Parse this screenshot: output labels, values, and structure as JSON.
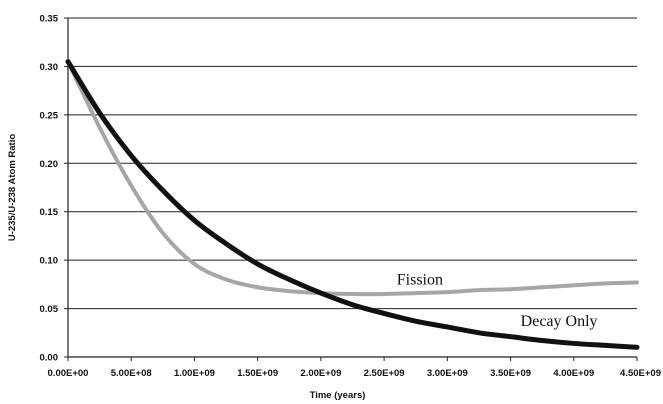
{
  "chart_data": {
    "type": "line",
    "xlabel": "Time (years)",
    "ylabel": "U-235/U-238 Atom Ratio",
    "xlim": [
      0,
      4500000000
    ],
    "ylim": [
      0,
      0.35
    ],
    "x_ticks": [
      "0.00E+00",
      "5.00E+08",
      "1.00E+09",
      "1.50E+09",
      "2.00E+09",
      "2.50E+09",
      "3.00E+09",
      "3.50E+09",
      "4.00E+09",
      "4.50E+09"
    ],
    "y_ticks": [
      "0.00",
      "0.05",
      "0.10",
      "0.15",
      "0.20",
      "0.25",
      "0.30",
      "0.35"
    ],
    "grid": "horizontal",
    "legend": "none",
    "series": [
      {
        "name": "Decay Only",
        "color": "#111111",
        "x": [
          0,
          250000000,
          500000000,
          750000000,
          1000000000,
          1250000000,
          1500000000,
          1750000000,
          2000000000,
          2250000000,
          2500000000,
          2750000000,
          3000000000,
          3250000000,
          3500000000,
          3750000000,
          4000000000,
          4250000000,
          4500000000
        ],
        "y": [
          0.305,
          0.252,
          0.208,
          0.172,
          0.141,
          0.117,
          0.096,
          0.08,
          0.066,
          0.054,
          0.045,
          0.037,
          0.031,
          0.025,
          0.021,
          0.017,
          0.014,
          0.012,
          0.01
        ]
      },
      {
        "name": "Fission",
        "color": "#a6a6a6",
        "x": [
          0,
          250000000,
          500000000,
          750000000,
          1000000000,
          1250000000,
          1500000000,
          1750000000,
          2000000000,
          2250000000,
          2500000000,
          2750000000,
          3000000000,
          3250000000,
          3500000000,
          3750000000,
          4000000000,
          4250000000,
          4500000000
        ],
        "y": [
          0.305,
          0.237,
          0.177,
          0.128,
          0.096,
          0.08,
          0.072,
          0.068,
          0.066,
          0.065,
          0.065,
          0.066,
          0.067,
          0.069,
          0.07,
          0.072,
          0.074,
          0.076,
          0.077
        ]
      }
    ]
  }
}
